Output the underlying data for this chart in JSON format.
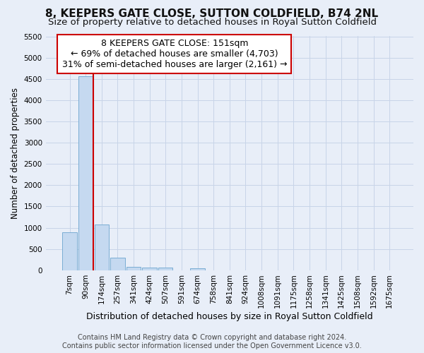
{
  "title": "8, KEEPERS GATE CLOSE, SUTTON COLDFIELD, B74 2NL",
  "subtitle": "Size of property relative to detached houses in Royal Sutton Coldfield",
  "xlabel": "Distribution of detached houses by size in Royal Sutton Coldfield",
  "ylabel": "Number of detached properties",
  "footer_line1": "Contains HM Land Registry data © Crown copyright and database right 2024.",
  "footer_line2": "Contains public sector information licensed under the Open Government Licence v3.0.",
  "bin_labels": [
    "7sqm",
    "90sqm",
    "174sqm",
    "257sqm",
    "341sqm",
    "424sqm",
    "507sqm",
    "591sqm",
    "674sqm",
    "758sqm",
    "841sqm",
    "924sqm",
    "1008sqm",
    "1091sqm",
    "1175sqm",
    "1258sqm",
    "1341sqm",
    "1425sqm",
    "1508sqm",
    "1592sqm",
    "1675sqm"
  ],
  "bar_heights": [
    900,
    4560,
    1070,
    300,
    80,
    70,
    60,
    0,
    55,
    0,
    0,
    0,
    0,
    0,
    0,
    0,
    0,
    0,
    0,
    0,
    0
  ],
  "bar_color": "#c5d9f0",
  "bar_edge_color": "#7aadd4",
  "red_line_color": "#cc0000",
  "red_line_x": 1.5,
  "annotation_title": "8 KEEPERS GATE CLOSE: 151sqm",
  "annotation_line1": "← 69% of detached houses are smaller (4,703)",
  "annotation_line2": "31% of semi-detached houses are larger (2,161) →",
  "annotation_box_color": "#ffffff",
  "annotation_box_edge_color": "#cc0000",
  "grid_color": "#c8d4e8",
  "background_color": "#e8eef8",
  "ylim": [
    0,
    5500
  ],
  "yticks": [
    0,
    500,
    1000,
    1500,
    2000,
    2500,
    3000,
    3500,
    4000,
    4500,
    5000,
    5500
  ],
  "title_fontsize": 11,
  "subtitle_fontsize": 9.5,
  "xlabel_fontsize": 9,
  "ylabel_fontsize": 8.5,
  "tick_fontsize": 7.5,
  "annotation_fontsize": 9,
  "footer_fontsize": 7
}
